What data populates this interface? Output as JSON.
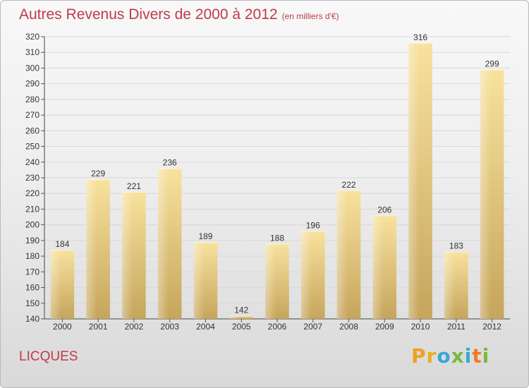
{
  "header": {
    "title": "Autres Revenus Divers de 2000 à 2012",
    "unit": "(en milliers d'€)"
  },
  "footer": {
    "location": "LICQUES",
    "brand": "Proxiti"
  },
  "colors": {
    "bar_light": "#f5dc96",
    "bar_dark": "#c8a860",
    "title": "#c03a4a"
  },
  "chart_data": {
    "type": "bar",
    "title": "Autres Revenus Divers de 2000 à 2012",
    "subtitle": "(en milliers d'€)",
    "xlabel": "",
    "ylabel": "",
    "categories": [
      "2000",
      "2001",
      "2002",
      "2003",
      "2004",
      "2005",
      "2006",
      "2007",
      "2008",
      "2009",
      "2010",
      "2011",
      "2012"
    ],
    "values": [
      184,
      229,
      221,
      236,
      189,
      142,
      188,
      196,
      222,
      206,
      316,
      183,
      299
    ],
    "ylim": [
      140,
      320
    ],
    "yticks": [
      140,
      150,
      160,
      170,
      180,
      190,
      200,
      210,
      220,
      230,
      240,
      250,
      260,
      270,
      280,
      290,
      300,
      310,
      320
    ],
    "grid": true,
    "legend": "none"
  }
}
